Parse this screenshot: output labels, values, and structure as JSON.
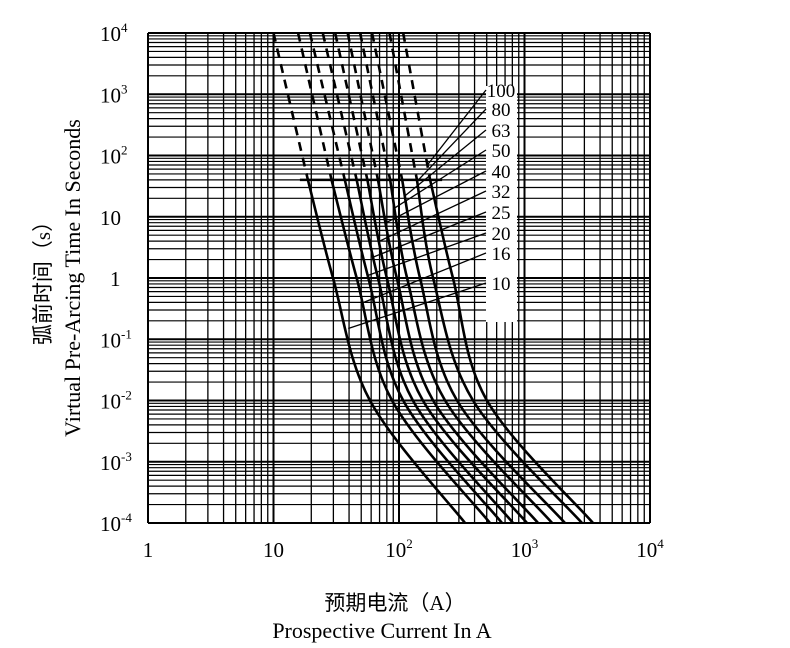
{
  "chart_data": {
    "type": "line",
    "xlabel_cn": "预期电流（A）",
    "xlabel": "Prospective Current In A",
    "ylabel_cn": "弧前时间（s）",
    "ylabel": "Virtual Pre-Arcing Time In Seconds",
    "x_scale": "log",
    "y_scale": "log",
    "xlim": [
      1,
      10000
    ],
    "ylim": [
      0.0001,
      10000
    ],
    "grid": true,
    "x_ticks": [
      {
        "base": "1",
        "exp": ""
      },
      {
        "base": "10",
        "exp": ""
      },
      {
        "base": "10",
        "exp": "2"
      },
      {
        "base": "10",
        "exp": "3"
      },
      {
        "base": "10",
        "exp": "4"
      }
    ],
    "y_ticks": [
      {
        "base": "10",
        "exp": "4"
      },
      {
        "base": "10",
        "exp": "3"
      },
      {
        "base": "10",
        "exp": "2"
      },
      {
        "base": "10",
        "exp": ""
      },
      {
        "base": "1",
        "exp": ""
      },
      {
        "base": "10",
        "exp": "-1"
      },
      {
        "base": "10",
        "exp": "-2"
      },
      {
        "base": "10",
        "exp": "-3"
      },
      {
        "base": "10",
        "exp": "-4"
      }
    ],
    "dashed_above_time_s": 40,
    "line_color": "#000000",
    "series": [
      {
        "name": "10",
        "points": [
          [
            10,
            10000
          ],
          [
            18.8,
            40
          ],
          [
            29.8,
            1
          ],
          [
            58.7,
            0.01
          ],
          [
            336,
            0.0001
          ]
        ]
      },
      {
        "name": "16",
        "points": [
          [
            15.7,
            10000
          ],
          [
            29,
            40
          ],
          [
            46,
            1
          ],
          [
            88,
            0.01
          ],
          [
            531,
            0.0001
          ]
        ]
      },
      {
        "name": "20",
        "points": [
          [
            19.5,
            10000
          ],
          [
            37,
            40
          ],
          [
            57,
            1
          ],
          [
            108,
            0.01
          ],
          [
            662,
            0.0001
          ]
        ]
      },
      {
        "name": "25",
        "points": [
          [
            24.7,
            10000
          ],
          [
            46,
            40
          ],
          [
            68,
            1
          ],
          [
            129,
            0.01
          ],
          [
            810,
            0.0001
          ]
        ]
      },
      {
        "name": "32",
        "points": [
          [
            31,
            10000
          ],
          [
            56,
            40
          ],
          [
            80,
            1
          ],
          [
            155,
            0.01
          ],
          [
            1047,
            0.0001
          ]
        ]
      },
      {
        "name": "40",
        "points": [
          [
            39,
            10000
          ],
          [
            68,
            40
          ],
          [
            96,
            1
          ],
          [
            187,
            0.01
          ],
          [
            1282,
            0.0001
          ]
        ]
      },
      {
        "name": "50",
        "points": [
          [
            49,
            10000
          ],
          [
            85,
            40
          ],
          [
            116,
            1
          ],
          [
            233,
            0.01
          ],
          [
            1660,
            0.0001
          ]
        ]
      },
      {
        "name": "63",
        "points": [
          [
            61,
            10000
          ],
          [
            106,
            40
          ],
          [
            147,
            1
          ],
          [
            290,
            0.01
          ],
          [
            2100,
            0.0001
          ]
        ]
      },
      {
        "name": "80",
        "points": [
          [
            84,
            10000
          ],
          [
            139,
            40
          ],
          [
            187,
            1
          ],
          [
            389,
            0.01
          ],
          [
            2870,
            0.0001
          ]
        ]
      },
      {
        "name": "100",
        "points": [
          [
            108,
            10000
          ],
          [
            177,
            40
          ],
          [
            269,
            1
          ],
          [
            502,
            0.01
          ],
          [
            3515,
            0.0001
          ]
        ]
      }
    ]
  }
}
